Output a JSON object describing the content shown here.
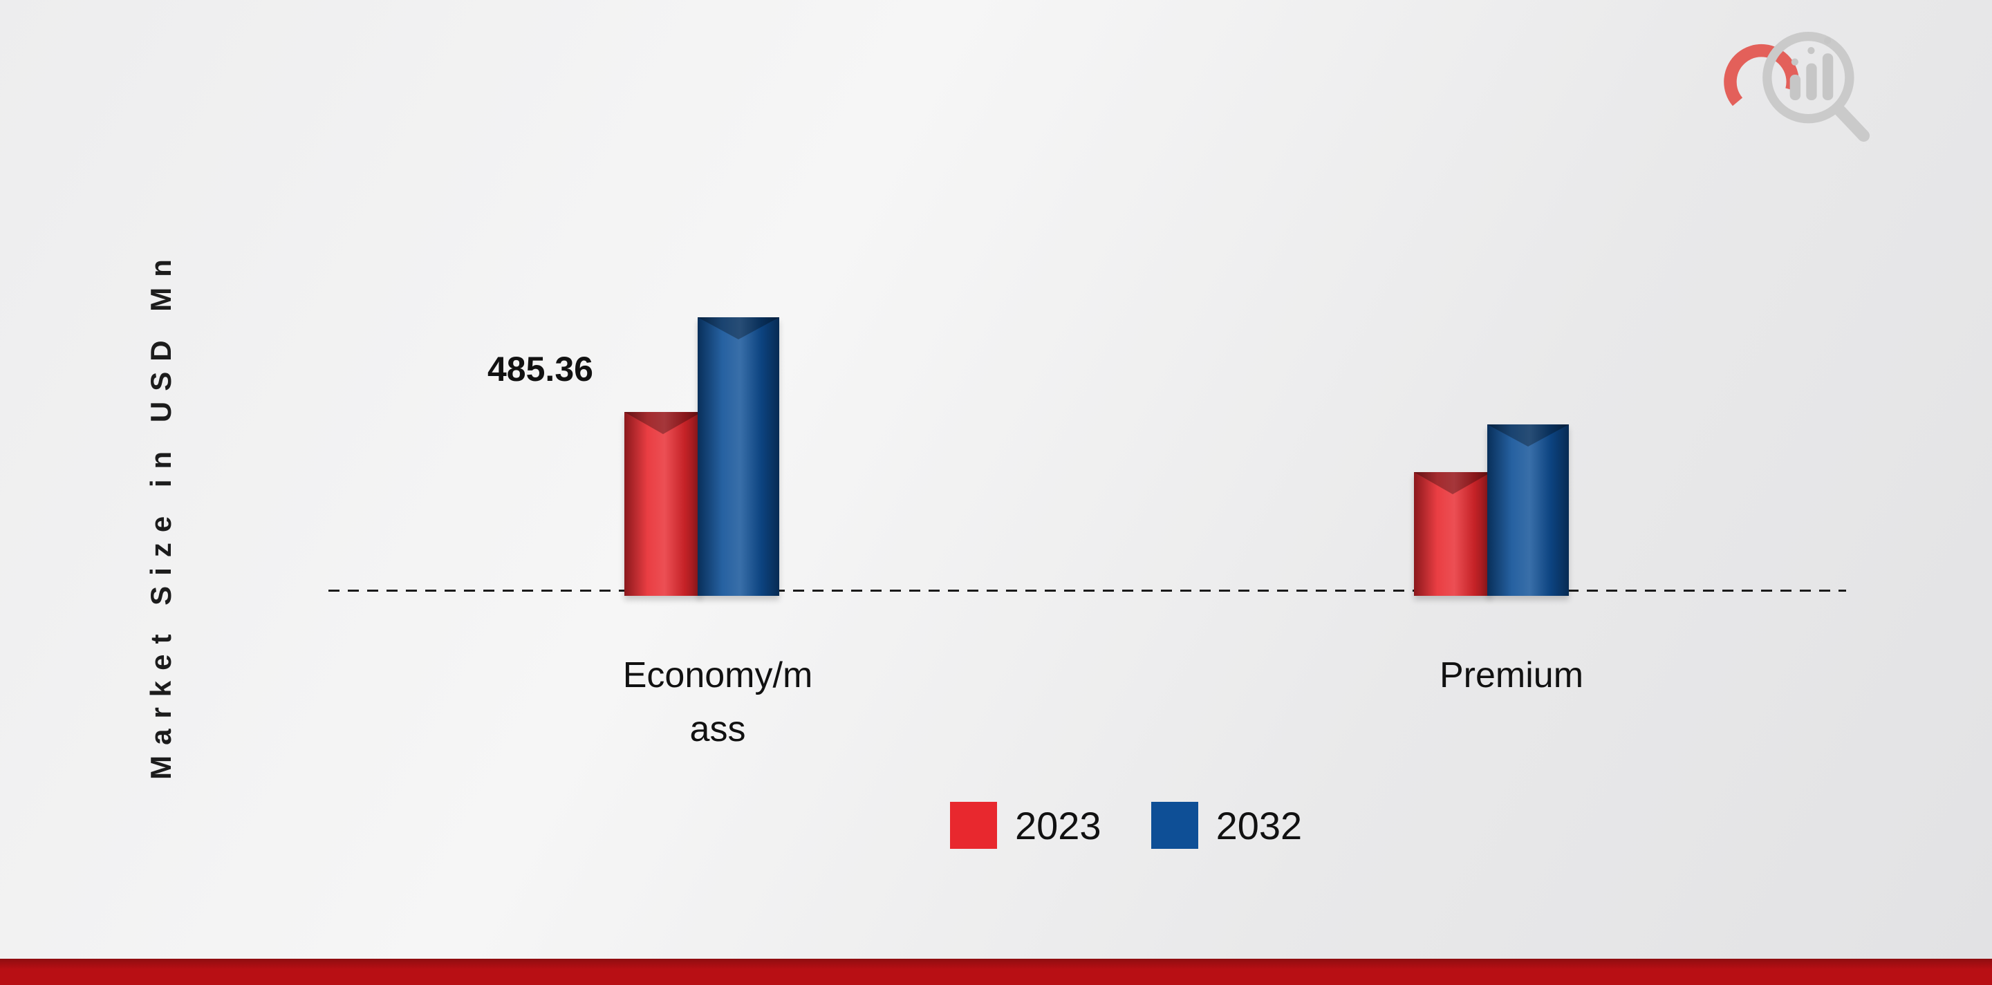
{
  "chart_data": {
    "type": "bar",
    "title": "",
    "ylabel": "Market Size in USD Mn",
    "xlabel": "",
    "categories": [
      "Economy/mass",
      "Premium"
    ],
    "tick_lines": [
      [
        "Economy/m",
        "ass"
      ],
      [
        "Premium"
      ]
    ],
    "series": [
      {
        "name": "2023",
        "color": "#e8282e",
        "values": [
          485.36,
          326
        ]
      },
      {
        "name": "2032",
        "color": "#0e4f96",
        "values": [
          735,
          452
        ]
      }
    ],
    "value_labels": [
      {
        "text": "485.36",
        "series": "2023",
        "category": "Economy/mass"
      }
    ],
    "legend_entries": [
      "2023",
      "2032"
    ],
    "legend_position": "bottom",
    "baseline_style": "dashed",
    "grid": false,
    "ylim": [
      0,
      800
    ]
  },
  "colors": {
    "bar_2023": "#e8282e",
    "bar_2032": "#0e4f96",
    "footer_bar": "#b80f14",
    "text": "#111111",
    "logo_gray": "#c8c8c8",
    "logo_red": "#e23a33"
  }
}
